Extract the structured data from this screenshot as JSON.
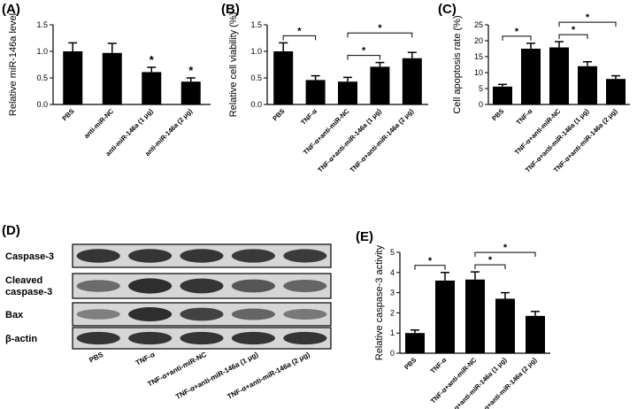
{
  "colors": {
    "bar": "#000000",
    "axis": "#000000",
    "blot_bg": "#d6d6d6",
    "band": "#202020"
  },
  "chart_data": [
    {
      "panel": "(A)",
      "type": "bar",
      "ylabel": "Relative miR-146a level",
      "ylim": [
        0,
        1.5
      ],
      "yticks": [
        "0.0",
        "0.5",
        "1.0",
        "1.5"
      ],
      "categories": [
        "PBS",
        "anti-miR-NC",
        "anti-miR-146a (1 μg)",
        "anti-miR-146a (2 μg)"
      ],
      "values": [
        1.0,
        0.97,
        0.61,
        0.43
      ],
      "errors": [
        0.16,
        0.18,
        0.09,
        0.07
      ],
      "annotations": [
        {
          "category_index": 2,
          "text": "*"
        },
        {
          "category_index": 3,
          "text": "*"
        }
      ]
    },
    {
      "panel": "(B)",
      "type": "bar",
      "ylabel": "Relative cell viability (%)",
      "ylim": [
        0,
        1.5
      ],
      "yticks": [
        "0.0",
        "0.5",
        "1.0",
        "1.5"
      ],
      "categories": [
        "PBS",
        "TNF-α",
        "TNF-α+anti-miR-NC",
        "TNF-α+anti-miR-146a (1 μg)",
        "TNF-α+anti-miR-146a (2 μg)"
      ],
      "values": [
        1.0,
        0.46,
        0.43,
        0.71,
        0.87
      ],
      "errors": [
        0.16,
        0.08,
        0.08,
        0.08,
        0.11
      ],
      "comparisons": [
        {
          "from": 0,
          "to": 1,
          "text": "*"
        },
        {
          "from": 2,
          "to": 3,
          "text": "*"
        },
        {
          "from": 2,
          "to": 4,
          "text": "*"
        }
      ]
    },
    {
      "panel": "(C)",
      "type": "bar",
      "ylabel": "Cell apoptosis rate (%)",
      "ylim": [
        0,
        25
      ],
      "yticks": [
        "0",
        "5",
        "10",
        "15",
        "20",
        "25"
      ],
      "categories": [
        "PBS",
        "TNF-α",
        "TNF-α+anti-miR-NC",
        "TNF-α+anti-miR-146a (1 μg)",
        "TNF-α+anti-miR-146a (2 μg)"
      ],
      "values": [
        5.6,
        17.5,
        17.9,
        12.0,
        8.0
      ],
      "errors": [
        0.7,
        1.7,
        1.8,
        1.4,
        1.0
      ],
      "comparisons": [
        {
          "from": 0,
          "to": 1,
          "text": "*"
        },
        {
          "from": 2,
          "to": 3,
          "text": "*"
        },
        {
          "from": 2,
          "to": 4,
          "text": "*"
        }
      ]
    },
    {
      "panel": "(E)",
      "type": "bar",
      "ylabel": "Relative caspase-3 activity",
      "ylim": [
        0,
        5
      ],
      "yticks": [
        "0",
        "1",
        "2",
        "3",
        "4",
        "5"
      ],
      "categories": [
        "PBS",
        "TNF-α",
        "TNF-α+anti-miR-NC",
        "TNF-α+anti-miR-146a (1 μg)",
        "TNF-α+anti-miR-146a (2 μg)"
      ],
      "values": [
        1.0,
        3.6,
        3.65,
        2.7,
        1.85
      ],
      "errors": [
        0.15,
        0.4,
        0.38,
        0.3,
        0.22
      ],
      "comparisons": [
        {
          "from": 0,
          "to": 1,
          "text": "*"
        },
        {
          "from": 2,
          "to": 3,
          "text": "*"
        },
        {
          "from": 2,
          "to": 4,
          "text": "*"
        }
      ]
    }
  ],
  "blot": {
    "panel": "(D)",
    "rows": [
      {
        "label": "Caspase-3",
        "intensities": [
          0.85,
          0.85,
          0.85,
          0.82,
          0.8
        ]
      },
      {
        "label": "Cleaved caspase-3",
        "intensities": [
          0.45,
          0.9,
          0.85,
          0.6,
          0.5
        ]
      },
      {
        "label": "Bax",
        "intensities": [
          0.3,
          0.9,
          0.75,
          0.5,
          0.35
        ]
      },
      {
        "label": "β-actin",
        "intensities": [
          0.85,
          0.85,
          0.85,
          0.85,
          0.85
        ]
      }
    ],
    "lanes": [
      "PBS",
      "TNF-α",
      "TNF-α+anti-miR-NC",
      "TNF-α+anti-miR-146a (1 μg)",
      "TNF-α+anti-miR-146a (2 μg)"
    ]
  }
}
